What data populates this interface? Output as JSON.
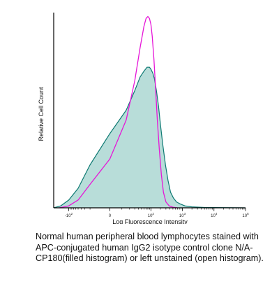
{
  "chart_data": {
    "type": "area",
    "xlabel": "Log Fluorescence Intensity",
    "ylabel": "Relative Cell Count",
    "x_scale": "biexponential",
    "x_ticks": [
      {
        "label": "-10",
        "sup": "2",
        "value": -100
      },
      {
        "label": "0",
        "sup": "",
        "value": 0
      },
      {
        "label": "10",
        "sup": "2",
        "value": 100
      },
      {
        "label": "10",
        "sup": "3",
        "value": 1000
      },
      {
        "label": "10",
        "sup": "4",
        "value": 10000
      },
      {
        "label": "10",
        "sup": "5",
        "value": 100000
      }
    ],
    "ylim": [
      0,
      100
    ],
    "grid": false,
    "series": [
      {
        "kind": "filled",
        "color": "#0e7a73",
        "fill": "#b8ddd9",
        "x": [
          -300,
          -180,
          -100,
          -50,
          -20,
          0,
          15,
          30,
          45,
          60,
          75,
          90,
          100,
          115,
          130,
          150,
          175,
          200,
          240,
          290,
          350,
          420,
          520,
          650,
          850,
          1200,
          2000,
          5000,
          100000
        ],
        "y": [
          0,
          1,
          4,
          10,
          22,
          38,
          50,
          60,
          67,
          70,
          72,
          72,
          71,
          69,
          66,
          60,
          52,
          43,
          32,
          22,
          14,
          8,
          5,
          3,
          2,
          1,
          0.5,
          0.2,
          0
        ]
      },
      {
        "kind": "open",
        "color": "#e616d8",
        "x": [
          -200,
          -100,
          -50,
          -20,
          0,
          15,
          30,
          45,
          60,
          70,
          80,
          90,
          100,
          110,
          125,
          140,
          160,
          185,
          215,
          250,
          300,
          380,
          500,
          700
        ],
        "y": [
          0,
          1,
          4,
          12,
          25,
          45,
          65,
          82,
          93,
          97,
          98,
          97,
          94,
          88,
          76,
          62,
          45,
          30,
          17,
          8,
          3,
          1,
          0.3,
          0
        ]
      }
    ]
  },
  "caption": "Normal human peripheral blood lymphocytes stained with APC-conjugated human IgG2 isotype control clone N/A-CP180(filled histogram) or left unstained (open histogram)."
}
